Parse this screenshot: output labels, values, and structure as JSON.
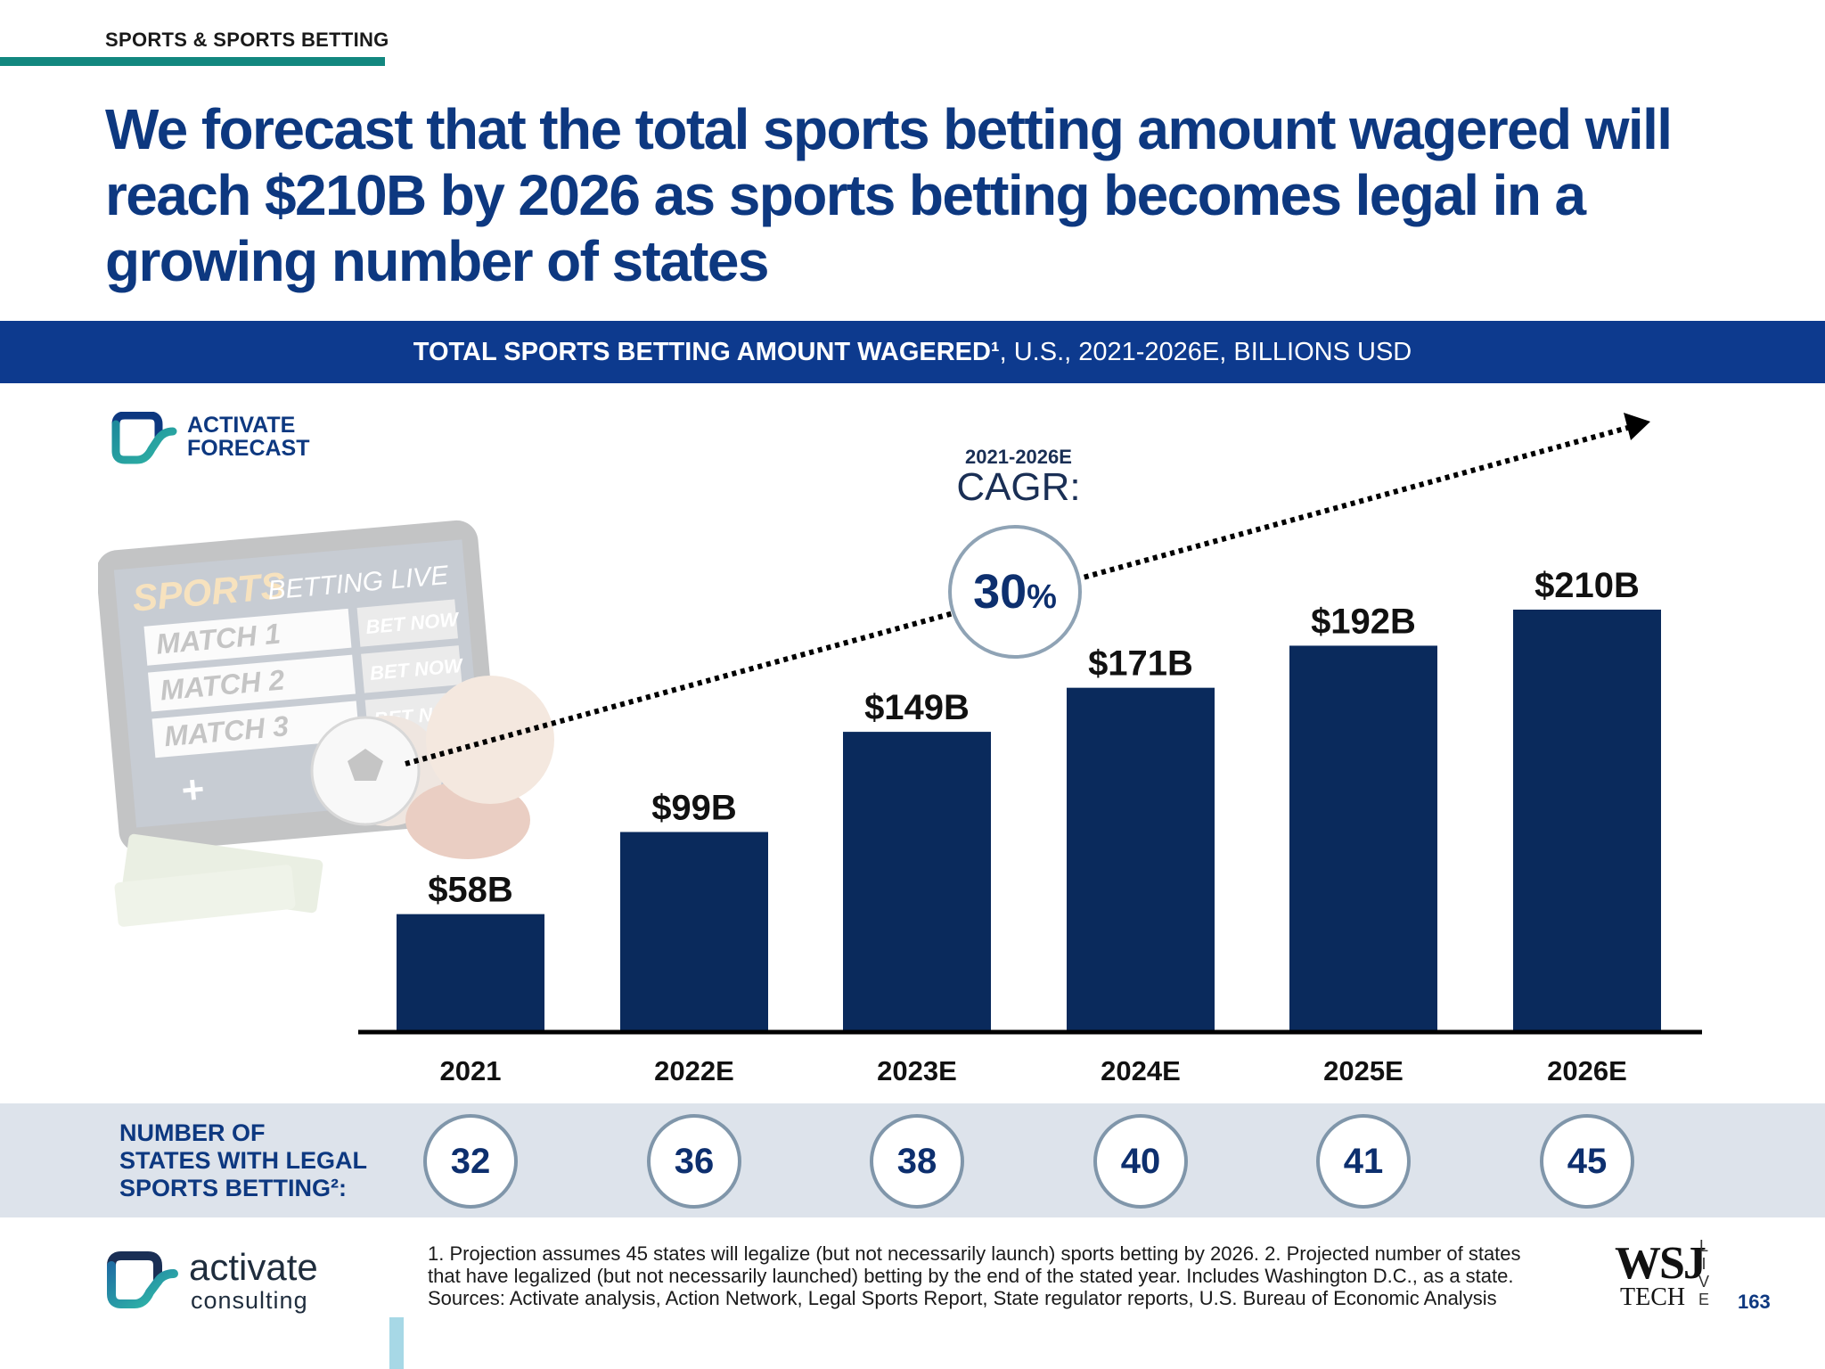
{
  "section_label": "SPORTS & SPORTS BETTING",
  "headline": "We forecast that the total sports betting amount wagered will reach $210B by 2026 as sports betting becomes legal in a growing number of states",
  "banner": {
    "bold": "TOTAL SPORTS BETTING AMOUNT WAGERED¹",
    "rest": ", U.S., 2021-2026E, BILLIONS USD"
  },
  "badge": {
    "line1": "ACTIVATE",
    "line2": "FORECAST"
  },
  "cagr": {
    "years": "2021-2026E",
    "label": "CAGR:",
    "value": "30",
    "unit": "%"
  },
  "states_label": {
    "line1": "NUMBER OF",
    "line2": "STATES WITH LEGAL",
    "line3": "SPORTS BETTING²:"
  },
  "chart_data": {
    "type": "bar",
    "title": "TOTAL SPORTS BETTING AMOUNT WAGERED¹, U.S., 2021-2026E, BILLIONS USD",
    "categories": [
      "2021",
      "2022E",
      "2023E",
      "2024E",
      "2025E",
      "2026E"
    ],
    "values": [
      58,
      99,
      149,
      171,
      192,
      210
    ],
    "data_labels": [
      "$58B",
      "$99B",
      "$149B",
      "$171B",
      "$192B",
      "$210B"
    ],
    "states": [
      32,
      36,
      38,
      40,
      41,
      45
    ],
    "ylim": [
      0,
      210
    ],
    "grid": false,
    "color": "#0a2a5c"
  },
  "logo": {
    "name": "activate",
    "sub": "consulting"
  },
  "footnotes": {
    "line1": "1. Projection assumes 45 states will legalize (but not necessarily launch) sports betting by 2026.  2. Projected number of states",
    "line2": "that have legalized (but not necessarily launched) betting by the end of the stated year. Includes Washington D.C., as a state.",
    "line3": "Sources: Activate analysis, Action Network, Legal Sports Report, State regulator reports, U.S. Bureau of Economic Analysis"
  },
  "wsj": {
    "top": "WSJ",
    "bottom": "TECH",
    "side": "LIVE"
  },
  "page_number": "163",
  "illustration_text": {
    "title1": "SPORTS",
    "title2": "BETTING LIVE",
    "m1": "MATCH 1",
    "m2": "MATCH 2",
    "m3": "MATCH 3",
    "bet": "BET NOW"
  }
}
